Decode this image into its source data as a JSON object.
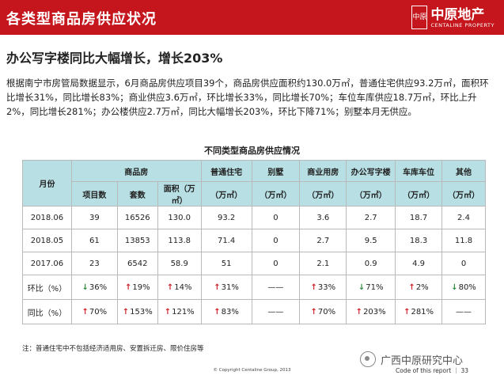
{
  "header": {
    "title": "各类型商品房供应状况",
    "logo_seal": "中原",
    "logo_name": "中原地产",
    "logo_en": "CENTALINE PROPERTY"
  },
  "subtitle": "办公写字楼同比大幅增长，增长203%",
  "body_text": "根据南宁市房管局数据显示，6月商品房供应项目39个，商品房供应面积约130.0万㎡，普通住宅供应93.2万㎡，面积环比增长31%，同比增长83%；商业供应3.6万㎡，环比增长33%，同比增长70%；车位车库供应18.7万㎡，环比上升2%，同比增长281%；办公楼供应2.7万㎡，同比大幅增长203%，环比下降71%；别墅本月无供应。",
  "table": {
    "title": "不同类型商品房供应情况",
    "headers_row1": {
      "month": "月份",
      "commercial": "商品房",
      "residential": "普通住宅",
      "villa": "别墅",
      "business": "商业用房",
      "office": "办公写字楼",
      "parking": "车库车位",
      "other": "其他"
    },
    "headers_row2": {
      "projects": "项目数",
      "units": "套数",
      "area": "面积（万㎡）",
      "unit_wan": "（万㎡）"
    },
    "rows": [
      {
        "month": "2018.06",
        "projects": "39",
        "units": "16526",
        "area": "130.0",
        "residential": "93.2",
        "villa": "0",
        "business": "3.6",
        "office": "2.7",
        "parking": "18.7",
        "other": "2.4"
      },
      {
        "month": "2018.05",
        "projects": "61",
        "units": "13853",
        "area": "113.8",
        "residential": "71.4",
        "villa": "0",
        "business": "2.7",
        "office": "9.5",
        "parking": "18.3",
        "other": "11.8"
      },
      {
        "month": "2017.06",
        "projects": "23",
        "units": "6542",
        "area": "58.9",
        "residential": "51",
        "villa": "0",
        "business": "2.1",
        "office": "0.9",
        "parking": "4.9",
        "other": "0"
      }
    ],
    "changes": [
      {
        "label": "环比（%）",
        "cells": [
          {
            "dir": "down",
            "val": "36%"
          },
          {
            "dir": "up",
            "val": "19%"
          },
          {
            "dir": "up",
            "val": "14%"
          },
          {
            "dir": "up",
            "val": "31%"
          },
          {
            "dir": "none",
            "val": "——"
          },
          {
            "dir": "up",
            "val": "33%"
          },
          {
            "dir": "down",
            "val": "71%"
          },
          {
            "dir": "up",
            "val": "2%"
          },
          {
            "dir": "down",
            "val": "80%"
          }
        ]
      },
      {
        "label": "同比（%）",
        "cells": [
          {
            "dir": "up",
            "val": "70%"
          },
          {
            "dir": "up",
            "val": "153%"
          },
          {
            "dir": "up",
            "val": "121%"
          },
          {
            "dir": "up",
            "val": "83%"
          },
          {
            "dir": "none",
            "val": "——"
          },
          {
            "dir": "up",
            "val": "70%"
          },
          {
            "dir": "up",
            "val": "203%"
          },
          {
            "dir": "up",
            "val": "281%"
          },
          {
            "dir": "none",
            "val": "——"
          }
        ]
      }
    ]
  },
  "note": "注：普通住宅中不包括经济适用房、安置拆迁房、限价住房等",
  "footer": {
    "copyright": "© Copyright Centaline Group, 2013",
    "code": "Code of this report  ｜  33",
    "watermark": "广西中原研究中心"
  },
  "colors": {
    "brand_red": "#c4161c",
    "header_teal": "#b8e0e4",
    "up_arrow": "#d0232a",
    "down_arrow": "#2e8b3e"
  },
  "icons": {
    "up": "arrow-up-icon",
    "down": "arrow-down-icon",
    "wechat": "wechat-icon"
  }
}
